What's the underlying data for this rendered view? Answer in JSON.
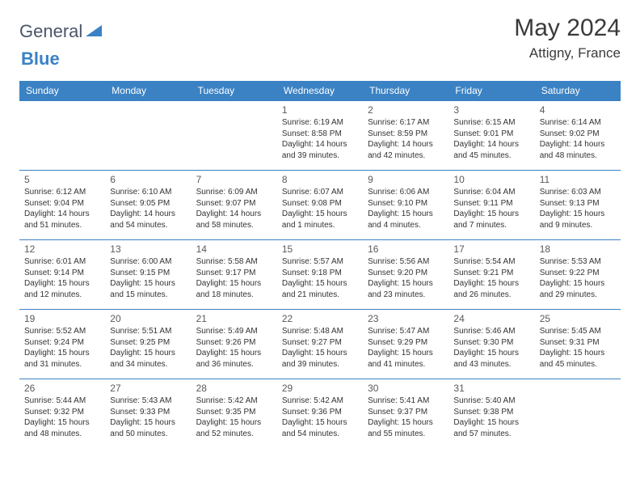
{
  "brand": {
    "name1": "General",
    "name2": "Blue"
  },
  "header": {
    "title": "May 2024",
    "location": "Attigny, France"
  },
  "weekdays": [
    "Sunday",
    "Monday",
    "Tuesday",
    "Wednesday",
    "Thursday",
    "Friday",
    "Saturday"
  ],
  "colors": {
    "accent": "#3b82c4",
    "text": "#333333",
    "headerBg": "#3b82c4"
  },
  "weeks": [
    [
      null,
      null,
      null,
      {
        "d": "1",
        "sr": "6:19 AM",
        "ss": "8:58 PM",
        "dh": "14",
        "dm": "39"
      },
      {
        "d": "2",
        "sr": "6:17 AM",
        "ss": "8:59 PM",
        "dh": "14",
        "dm": "42"
      },
      {
        "d": "3",
        "sr": "6:15 AM",
        "ss": "9:01 PM",
        "dh": "14",
        "dm": "45"
      },
      {
        "d": "4",
        "sr": "6:14 AM",
        "ss": "9:02 PM",
        "dh": "14",
        "dm": "48"
      }
    ],
    [
      {
        "d": "5",
        "sr": "6:12 AM",
        "ss": "9:04 PM",
        "dh": "14",
        "dm": "51"
      },
      {
        "d": "6",
        "sr": "6:10 AM",
        "ss": "9:05 PM",
        "dh": "14",
        "dm": "54"
      },
      {
        "d": "7",
        "sr": "6:09 AM",
        "ss": "9:07 PM",
        "dh": "14",
        "dm": "58"
      },
      {
        "d": "8",
        "sr": "6:07 AM",
        "ss": "9:08 PM",
        "dh": "15",
        "dm": "1"
      },
      {
        "d": "9",
        "sr": "6:06 AM",
        "ss": "9:10 PM",
        "dh": "15",
        "dm": "4"
      },
      {
        "d": "10",
        "sr": "6:04 AM",
        "ss": "9:11 PM",
        "dh": "15",
        "dm": "7"
      },
      {
        "d": "11",
        "sr": "6:03 AM",
        "ss": "9:13 PM",
        "dh": "15",
        "dm": "9"
      }
    ],
    [
      {
        "d": "12",
        "sr": "6:01 AM",
        "ss": "9:14 PM",
        "dh": "15",
        "dm": "12"
      },
      {
        "d": "13",
        "sr": "6:00 AM",
        "ss": "9:15 PM",
        "dh": "15",
        "dm": "15"
      },
      {
        "d": "14",
        "sr": "5:58 AM",
        "ss": "9:17 PM",
        "dh": "15",
        "dm": "18"
      },
      {
        "d": "15",
        "sr": "5:57 AM",
        "ss": "9:18 PM",
        "dh": "15",
        "dm": "21"
      },
      {
        "d": "16",
        "sr": "5:56 AM",
        "ss": "9:20 PM",
        "dh": "15",
        "dm": "23"
      },
      {
        "d": "17",
        "sr": "5:54 AM",
        "ss": "9:21 PM",
        "dh": "15",
        "dm": "26"
      },
      {
        "d": "18",
        "sr": "5:53 AM",
        "ss": "9:22 PM",
        "dh": "15",
        "dm": "29"
      }
    ],
    [
      {
        "d": "19",
        "sr": "5:52 AM",
        "ss": "9:24 PM",
        "dh": "15",
        "dm": "31"
      },
      {
        "d": "20",
        "sr": "5:51 AM",
        "ss": "9:25 PM",
        "dh": "15",
        "dm": "34"
      },
      {
        "d": "21",
        "sr": "5:49 AM",
        "ss": "9:26 PM",
        "dh": "15",
        "dm": "36"
      },
      {
        "d": "22",
        "sr": "5:48 AM",
        "ss": "9:27 PM",
        "dh": "15",
        "dm": "39"
      },
      {
        "d": "23",
        "sr": "5:47 AM",
        "ss": "9:29 PM",
        "dh": "15",
        "dm": "41"
      },
      {
        "d": "24",
        "sr": "5:46 AM",
        "ss": "9:30 PM",
        "dh": "15",
        "dm": "43"
      },
      {
        "d": "25",
        "sr": "5:45 AM",
        "ss": "9:31 PM",
        "dh": "15",
        "dm": "45"
      }
    ],
    [
      {
        "d": "26",
        "sr": "5:44 AM",
        "ss": "9:32 PM",
        "dh": "15",
        "dm": "48"
      },
      {
        "d": "27",
        "sr": "5:43 AM",
        "ss": "9:33 PM",
        "dh": "15",
        "dm": "50"
      },
      {
        "d": "28",
        "sr": "5:42 AM",
        "ss": "9:35 PM",
        "dh": "15",
        "dm": "52"
      },
      {
        "d": "29",
        "sr": "5:42 AM",
        "ss": "9:36 PM",
        "dh": "15",
        "dm": "54"
      },
      {
        "d": "30",
        "sr": "5:41 AM",
        "ss": "9:37 PM",
        "dh": "15",
        "dm": "55"
      },
      {
        "d": "31",
        "sr": "5:40 AM",
        "ss": "9:38 PM",
        "dh": "15",
        "dm": "57"
      },
      null
    ]
  ],
  "labels": {
    "sunrise": "Sunrise: ",
    "sunset": "Sunset: ",
    "daylightPrefix": "Daylight: ",
    "hoursWord": " hours",
    "andWord": "and ",
    "minutesSuffix": " minutes."
  }
}
